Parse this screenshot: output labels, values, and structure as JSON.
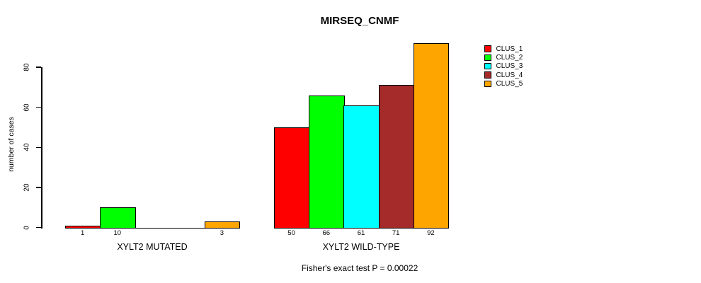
{
  "chart_data": {
    "type": "bar",
    "title": "MIRSEQ_CNMF",
    "ylabel": "number of cases",
    "xlabel": "",
    "ylim": [
      0,
      80
    ],
    "yticks": [
      0,
      20,
      40,
      60,
      80
    ],
    "grid": false,
    "legend_position": "right",
    "categories": [
      "XYLT2 MUTATED",
      "XYLT2 WILD-TYPE"
    ],
    "series": [
      {
        "name": "CLUS_1",
        "color": "#FF0000",
        "values": [
          1,
          50
        ]
      },
      {
        "name": "CLUS_2",
        "color": "#00FF00",
        "values": [
          10,
          66
        ]
      },
      {
        "name": "CLUS_3",
        "color": "#00FFFF",
        "values": [
          0,
          61
        ]
      },
      {
        "name": "CLUS_4",
        "color": "#A52A2A",
        "values": [
          0,
          71
        ]
      },
      {
        "name": "CLUS_5",
        "color": "#FFA500",
        "values": [
          3,
          92
        ]
      }
    ],
    "bar_value_labels": true,
    "zero_bars_drawn_as_lines": true,
    "annotation": "Fisher's exact test P = 0.00022"
  }
}
